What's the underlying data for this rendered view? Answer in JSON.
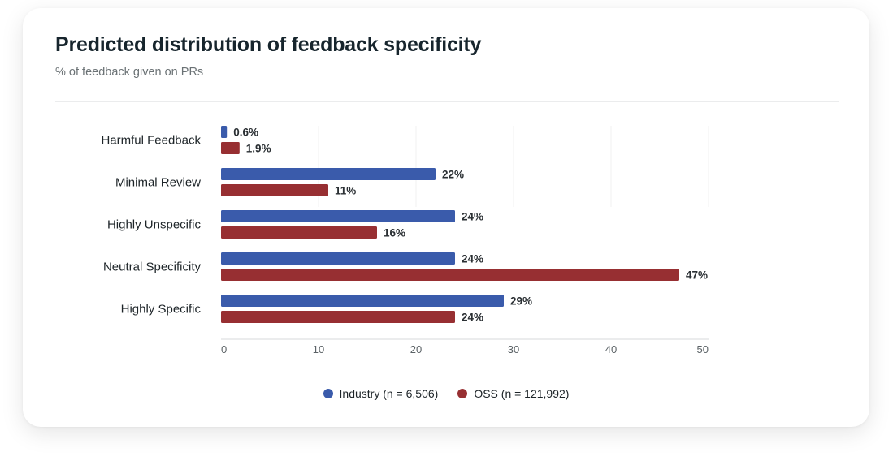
{
  "title": "Predicted distribution of feedback specificity",
  "subtitle": "% of feedback given on PRs",
  "colors": {
    "industry": "#3a5bab",
    "oss": "#972f32"
  },
  "chart_data": {
    "type": "bar",
    "orientation": "horizontal",
    "categories": [
      "Harmful Feedback",
      "Minimal Review",
      "Highly Unspecific",
      "Neutral Specificity",
      "Highly Specific"
    ],
    "series": [
      {
        "name": "Industry (n = 6,506)",
        "values": [
          0.6,
          22,
          24,
          24,
          29
        ],
        "labels": [
          "0.6%",
          "22%",
          "24%",
          "24%",
          "29%"
        ]
      },
      {
        "name": "OSS (n = 121,992)",
        "values": [
          1.9,
          11,
          16,
          47,
          24
        ],
        "labels": [
          "1.9%",
          "11%",
          "16%",
          "47%",
          "24%"
        ]
      }
    ],
    "xlim": [
      0,
      50
    ],
    "xticks": [
      "0",
      "10",
      "20",
      "30",
      "40",
      "50"
    ],
    "grid": true,
    "legend_position": "bottom-center"
  }
}
